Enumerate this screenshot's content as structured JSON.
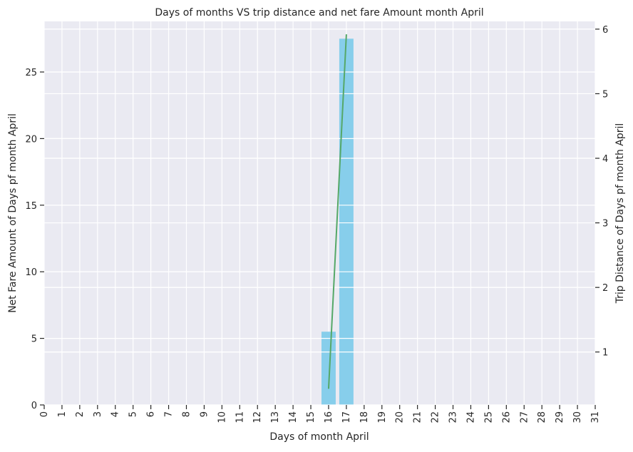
{
  "chart_data": {
    "type": "bar",
    "title": "Days of months VS trip distance and net fare Amount month April",
    "xlabel": "Days of month April",
    "ylabel_left": "Net Fare Amount of Days pf month April",
    "ylabel_right": "Trip Distance of Days pf month April",
    "x_categories": [
      "0",
      "1",
      "2",
      "3",
      "4",
      "5",
      "6",
      "7",
      "8",
      "9",
      "10",
      "11",
      "12",
      "13",
      "14",
      "15",
      "16",
      "17",
      "18",
      "19",
      "20",
      "21",
      "22",
      "23",
      "24",
      "25",
      "26",
      "27",
      "28",
      "29",
      "30",
      "31"
    ],
    "ylim_left": [
      0,
      28.8
    ],
    "ylim_right": [
      0.18,
      6.12
    ],
    "yticks_left": [
      0,
      5,
      10,
      15,
      20,
      25
    ],
    "yticks_right": [
      1,
      2,
      3,
      4,
      5,
      6
    ],
    "grid": true,
    "series": [
      {
        "axis": "left",
        "kind": "bar",
        "color": "#87ceeb",
        "points": [
          {
            "x": 16,
            "y": 5.5
          },
          {
            "x": 17,
            "y": 27.5
          }
        ]
      },
      {
        "axis": "right",
        "kind": "line",
        "color": "#55a868",
        "points": [
          {
            "x": 16,
            "y": 0.43
          },
          {
            "x": 17,
            "y": 5.92
          }
        ]
      }
    ]
  }
}
